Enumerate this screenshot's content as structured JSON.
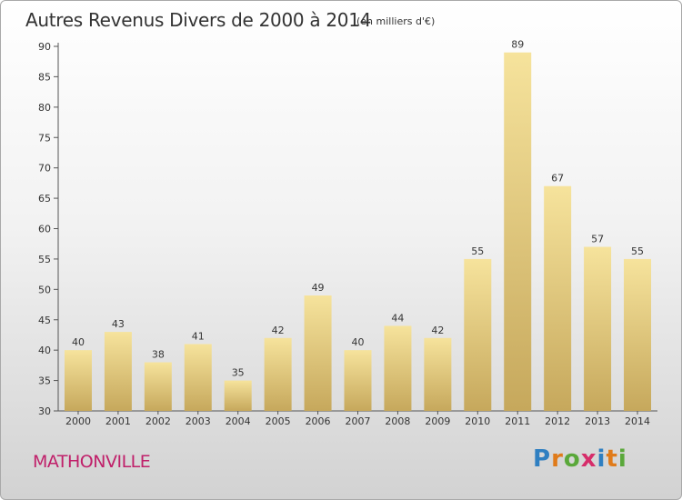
{
  "header": {
    "title": "Autres Revenus Divers de 2000 à 2014",
    "unit": "(en milliers d'€)"
  },
  "location": "MATHONVILLE",
  "logo": {
    "text": "Proxiti",
    "letter_colors": [
      "#2f7fc1",
      "#e07b1a",
      "#5aa83a",
      "#d62d6a",
      "#2f7fc1",
      "#e07b1a",
      "#5aa83a"
    ]
  },
  "colors": {
    "bar_light": "#f6e39c",
    "bar_dark": "#c6a85c",
    "axis": "#555555",
    "location": "#c0206a"
  },
  "chart_data": {
    "type": "bar",
    "categories": [
      "2000",
      "2001",
      "2002",
      "2003",
      "2004",
      "2005",
      "2006",
      "2007",
      "2008",
      "2009",
      "2010",
      "2011",
      "2012",
      "2013",
      "2014"
    ],
    "values": [
      40,
      43,
      38,
      41,
      35,
      42,
      49,
      40,
      44,
      42,
      55,
      89,
      67,
      57,
      55
    ],
    "ylim": [
      30,
      90
    ],
    "yticks": [
      30,
      35,
      40,
      45,
      50,
      55,
      60,
      65,
      70,
      75,
      80,
      85,
      90
    ],
    "grid": false,
    "data_labels": true
  }
}
